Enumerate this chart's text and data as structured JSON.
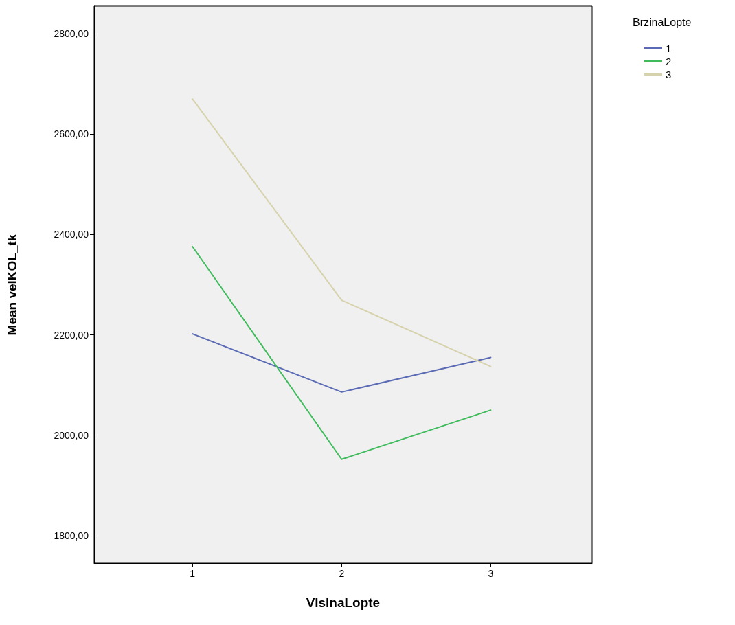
{
  "chart_data": {
    "type": "line",
    "xlabel": "VisinaLopte",
    "ylabel": "Mean velKOL_tk",
    "legend_title": "BrzinaLopte",
    "x": [
      1,
      2,
      3
    ],
    "xlim": [
      0.34,
      3.68
    ],
    "xticks": [
      1,
      2,
      3
    ],
    "ylim": [
      1745,
      2855
    ],
    "yticks": [
      {
        "value": 1800,
        "label": "1800,00"
      },
      {
        "value": 2000,
        "label": "2000,00"
      },
      {
        "value": 2200,
        "label": "2200,00"
      },
      {
        "value": 2400,
        "label": "2400,00"
      },
      {
        "value": 2600,
        "label": "2600,00"
      },
      {
        "value": 2800,
        "label": "2800,00"
      }
    ],
    "series": [
      {
        "name": "1",
        "color": "#5a6ab4",
        "values": [
          2202,
          2086,
          2155
        ]
      },
      {
        "name": "2",
        "color": "#3fbb5c",
        "values": [
          2376,
          1952,
          2050
        ]
      },
      {
        "name": "3",
        "color": "#d6d2ac",
        "values": [
          2670,
          2269,
          2137
        ]
      }
    ],
    "grid": false,
    "legend": "top right",
    "marker": "none",
    "line_style": "solid"
  }
}
